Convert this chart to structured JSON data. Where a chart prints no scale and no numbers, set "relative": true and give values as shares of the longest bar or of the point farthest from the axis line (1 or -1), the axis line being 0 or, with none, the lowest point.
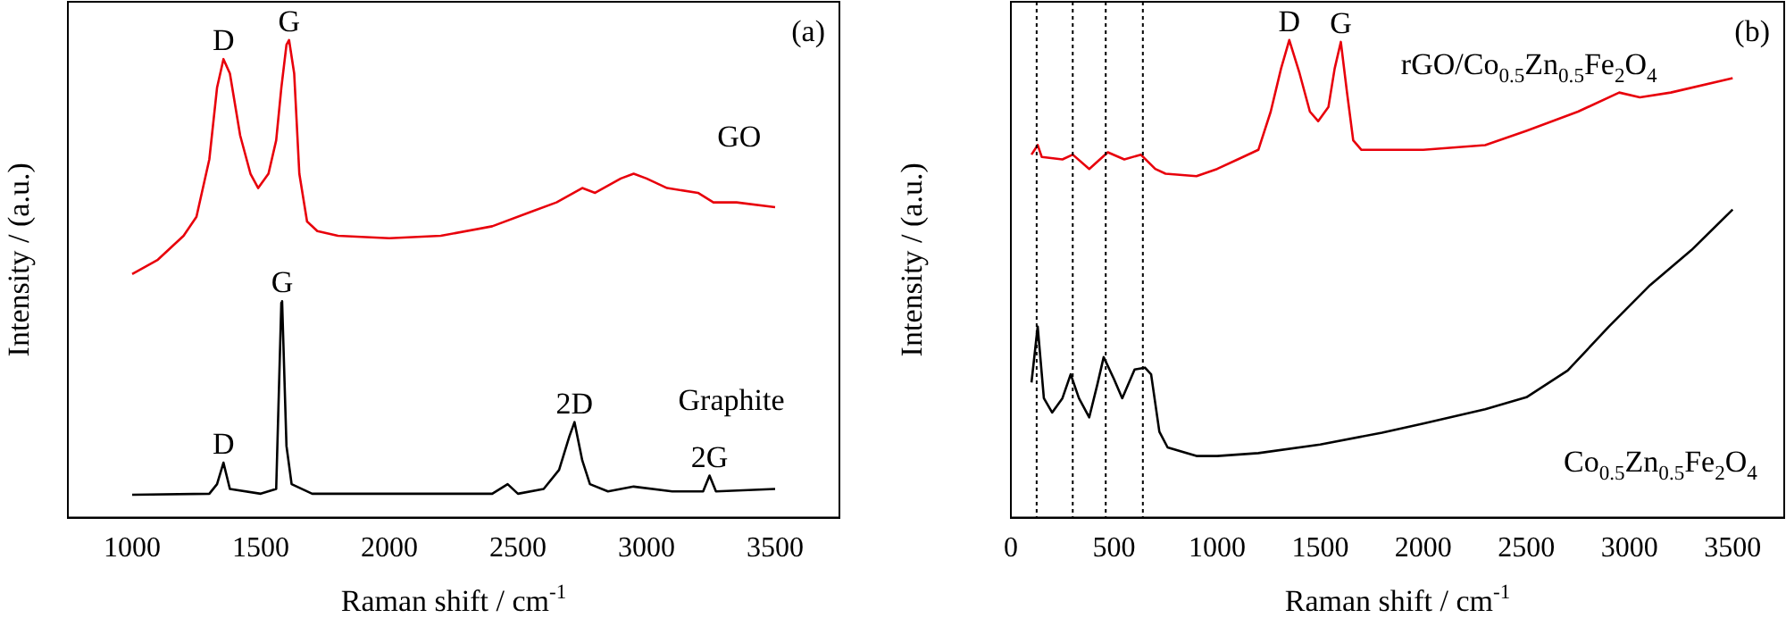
{
  "chart_data": [
    {
      "type": "line",
      "relative": true,
      "xlabel": "Raman shift / cm$^{-1}$",
      "ylabel": "Intensity / (a.u.)",
      "xlim": [
        750,
        3750
      ],
      "xticks": [
        1000,
        1500,
        2000,
        2500,
        3000,
        3500
      ],
      "grid": false,
      "legend": false,
      "marker": "none",
      "line_style": "solid",
      "annotations": [
        "(a)",
        {
          "text": "D",
          "x": 1355,
          "y": 0.96
        },
        {
          "text": "G",
          "x": 1610,
          "y": 1.0
        },
        {
          "text": "D",
          "x": 1355,
          "y": 0.115
        },
        {
          "text": "G",
          "x": 1583,
          "y": 0.453
        },
        {
          "text": "2D",
          "x": 2720,
          "y": 0.2
        },
        {
          "text": "2G",
          "x": 3245,
          "y": 0.088
        }
      ],
      "series": [
        {
          "name": "GO",
          "color": "#e8000b",
          "x": [
            1000,
            1100,
            1200,
            1250,
            1300,
            1330,
            1355,
            1380,
            1420,
            1460,
            1490,
            1530,
            1560,
            1580,
            1600,
            1610,
            1630,
            1650,
            1680,
            1720,
            1800,
            2000,
            2200,
            2400,
            2550,
            2650,
            2750,
            2800,
            2900,
            2950,
            3000,
            3080,
            3200,
            3260,
            3350,
            3500
          ],
          "values": [
            0.51,
            0.54,
            0.59,
            0.63,
            0.75,
            0.9,
            0.96,
            0.93,
            0.8,
            0.72,
            0.69,
            0.72,
            0.79,
            0.9,
            0.99,
            1.0,
            0.93,
            0.72,
            0.62,
            0.6,
            0.59,
            0.585,
            0.59,
            0.61,
            0.64,
            0.66,
            0.69,
            0.68,
            0.71,
            0.72,
            0.71,
            0.69,
            0.68,
            0.66,
            0.66,
            0.65
          ]
        },
        {
          "name": "Graphite",
          "color": "#000000",
          "x": [
            1000,
            1300,
            1330,
            1355,
            1380,
            1500,
            1560,
            1580,
            1583,
            1600,
            1620,
            1700,
            2400,
            2460,
            2500,
            2600,
            2660,
            2700,
            2720,
            2750,
            2780,
            2850,
            2950,
            3100,
            3220,
            3245,
            3270,
            3500
          ],
          "values": [
            0.048,
            0.05,
            0.07,
            0.115,
            0.06,
            0.05,
            0.06,
            0.45,
            0.453,
            0.15,
            0.07,
            0.05,
            0.05,
            0.07,
            0.05,
            0.06,
            0.1,
            0.17,
            0.2,
            0.12,
            0.07,
            0.055,
            0.065,
            0.055,
            0.055,
            0.088,
            0.055,
            0.06
          ]
        }
      ]
    },
    {
      "type": "line",
      "relative": true,
      "xlabel": "Raman shift / cm$^{-1}$",
      "ylabel": "Intensity / (a.u.)",
      "xlim": [
        0,
        3750
      ],
      "xticks": [
        0,
        500,
        1000,
        1500,
        2000,
        2500,
        3000,
        3500
      ],
      "grid": false,
      "legend": false,
      "marker": "none",
      "line_style": "solid",
      "annotations": [
        "(b)",
        {
          "text": "D",
          "x": 1350,
          "y": 1.0
        },
        {
          "text": "G",
          "x": 1600,
          "y": 0.996
        }
      ],
      "ref_lines": [
        {
          "axis": "x",
          "value": 125,
          "color": "#000000",
          "line_style": "dotted"
        },
        {
          "axis": "x",
          "value": 300,
          "color": "#000000",
          "line_style": "dotted"
        },
        {
          "axis": "x",
          "value": 460,
          "color": "#000000",
          "line_style": "dotted"
        },
        {
          "axis": "x",
          "value": 640,
          "color": "#000000",
          "line_style": "dotted"
        }
      ],
      "series": [
        {
          "name": "rGO/Co$_{0.5}$Zn$_{0.5}$Fe$_{2}$O$_{4}$",
          "color": "#e8000b",
          "x": [
            100,
            130,
            150,
            250,
            300,
            380,
            470,
            550,
            630,
            700,
            750,
            900,
            1000,
            1100,
            1200,
            1260,
            1310,
            1350,
            1400,
            1450,
            1490,
            1540,
            1570,
            1600,
            1630,
            1660,
            1700,
            2000,
            2300,
            2500,
            2750,
            2950,
            3050,
            3200,
            3500
          ],
          "values": [
            0.76,
            0.78,
            0.755,
            0.75,
            0.76,
            0.73,
            0.765,
            0.75,
            0.76,
            0.73,
            0.72,
            0.715,
            0.73,
            0.75,
            0.77,
            0.85,
            0.94,
            1.0,
            0.93,
            0.85,
            0.83,
            0.86,
            0.94,
            0.996,
            0.89,
            0.79,
            0.77,
            0.77,
            0.78,
            0.81,
            0.85,
            0.89,
            0.88,
            0.89,
            0.92
          ]
        },
        {
          "name": "Co$_{0.5}$Zn$_{0.5}$Fe$_{2}$O$_{4}$",
          "color": "#000000",
          "x": [
            100,
            130,
            160,
            200,
            250,
            290,
            330,
            380,
            420,
            450,
            500,
            540,
            600,
            650,
            680,
            720,
            760,
            900,
            1000,
            1200,
            1500,
            1800,
            2000,
            2300,
            2500,
            2700,
            2900,
            3100,
            3300,
            3500
          ],
          "values": [
            0.283,
            0.4,
            0.25,
            0.22,
            0.25,
            0.3,
            0.25,
            0.21,
            0.28,
            0.336,
            0.29,
            0.25,
            0.31,
            0.314,
            0.3,
            0.18,
            0.147,
            0.129,
            0.129,
            0.135,
            0.153,
            0.178,
            0.197,
            0.227,
            0.252,
            0.308,
            0.4,
            0.487,
            0.56,
            0.645
          ]
        }
      ]
    }
  ]
}
